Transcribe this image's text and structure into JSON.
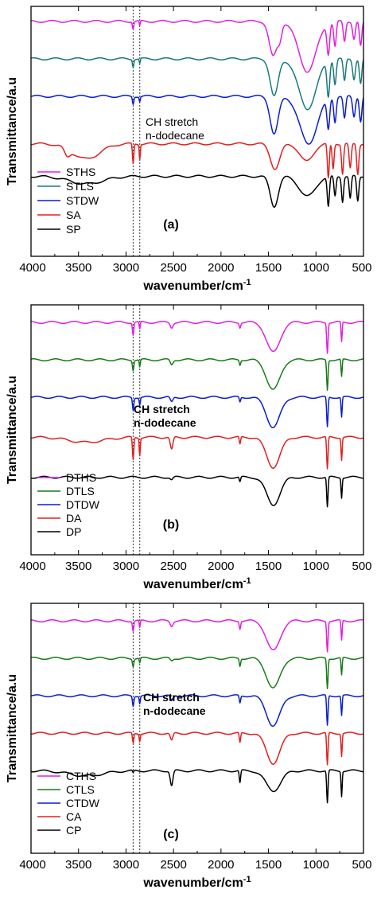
{
  "chart_data": [
    {
      "type": "line",
      "panel_label": "(a)",
      "xlabel": "wavenumber/cm",
      "xlabel_sup": "-1",
      "ylabel": "Transmittance/a.u",
      "xlim": [
        4000,
        500
      ],
      "x_ticks": [
        "4000",
        "3500",
        "3000",
        "2500",
        "2000",
        "1500",
        "1000",
        "500"
      ],
      "annotation": {
        "line1": "CH stretch",
        "line2": "n-dodecane",
        "bold": false
      },
      "dotted_lines_x": [
        2925,
        2855
      ],
      "legend": [
        "STHS",
        "STLS",
        "STDW",
        "SA",
        "SP"
      ],
      "series": [
        {
          "name": "STHS",
          "color": "#e020e0",
          "baseline": 0.94,
          "features": [
            [
              2925,
              0.03,
              10
            ],
            [
              2855,
              0.02,
              8
            ],
            [
              1450,
              0.14,
              60
            ],
            [
              1380,
              0.05,
              30
            ],
            [
              1090,
              0.2,
              130
            ],
            [
              870,
              0.12,
              20
            ],
            [
              800,
              0.1,
              18
            ],
            [
              700,
              0.08,
              18
            ],
            [
              600,
              0.07,
              20
            ],
            [
              530,
              0.1,
              18
            ]
          ]
        },
        {
          "name": "STLS",
          "color": "#1a7a7a",
          "baseline": 0.79,
          "features": [
            [
              2925,
              0.03,
              10
            ],
            [
              2855,
              0.02,
              8
            ],
            [
              1440,
              0.15,
              60
            ],
            [
              1090,
              0.2,
              130
            ],
            [
              870,
              0.14,
              20
            ],
            [
              800,
              0.1,
              18
            ],
            [
              700,
              0.09,
              18
            ],
            [
              600,
              0.08,
              20
            ],
            [
              530,
              0.1,
              18
            ]
          ]
        },
        {
          "name": "STDW",
          "color": "#0a1ed0",
          "baseline": 0.64,
          "features": [
            [
              2925,
              0.03,
              10
            ],
            [
              2855,
              0.02,
              8
            ],
            [
              1440,
              0.15,
              60
            ],
            [
              1080,
              0.19,
              130
            ],
            [
              870,
              0.12,
              20
            ],
            [
              800,
              0.1,
              18
            ],
            [
              700,
              0.09,
              18
            ],
            [
              600,
              0.08,
              20
            ],
            [
              530,
              0.1,
              18
            ]
          ]
        },
        {
          "name": "SA",
          "color": "#e02020",
          "baseline": 0.45,
          "features": [
            [
              3620,
              0.03,
              40
            ],
            [
              3420,
              0.06,
              200
            ],
            [
              2925,
              0.08,
              10
            ],
            [
              2855,
              0.06,
              8
            ],
            [
              1430,
              0.1,
              70
            ],
            [
              1100,
              0.07,
              100
            ],
            [
              870,
              0.14,
              14
            ],
            [
              820,
              0.1,
              14
            ],
            [
              720,
              0.12,
              15
            ],
            [
              640,
              0.1,
              16
            ],
            [
              560,
              0.12,
              16
            ]
          ]
        },
        {
          "name": "SP",
          "color": "#000000",
          "baseline": 0.32,
          "features": [
            [
              3420,
              0.03,
              250
            ],
            [
              1440,
              0.12,
              60
            ],
            [
              1090,
              0.08,
              120
            ],
            [
              870,
              0.12,
              16
            ],
            [
              800,
              0.08,
              15
            ],
            [
              720,
              0.1,
              15
            ],
            [
              640,
              0.09,
              15
            ],
            [
              560,
              0.1,
              16
            ]
          ]
        }
      ]
    },
    {
      "type": "line",
      "panel_label": "(b)",
      "xlabel": "wavenumber/cm",
      "xlabel_sup": "-1",
      "ylabel": "Transmittance/a.u",
      "xlim": [
        4000,
        500
      ],
      "x_ticks": [
        "4000",
        "3500",
        "3000",
        "2500",
        "2000",
        "1500",
        "1000",
        "500"
      ],
      "annotation": {
        "line1": "CH stretch",
        "line2": "n-dodecane",
        "bold": true
      },
      "dotted_lines_x": [
        2925,
        2855
      ],
      "legend": [
        "DTHS",
        "DTLS",
        "DTDW",
        "DA",
        "DP"
      ],
      "series": [
        {
          "name": "DTHS",
          "color": "#e020e0",
          "baseline": 0.93,
          "features": [
            [
              2925,
              0.05,
              10
            ],
            [
              2855,
              0.03,
              8
            ],
            [
              2520,
              0.02,
              20
            ],
            [
              1800,
              0.02,
              10
            ],
            [
              1450,
              0.12,
              100
            ],
            [
              880,
              0.12,
              10
            ],
            [
              730,
              0.08,
              8
            ]
          ]
        },
        {
          "name": "DTLS",
          "color": "#1a7a1a",
          "baseline": 0.78,
          "features": [
            [
              2925,
              0.04,
              10
            ],
            [
              2855,
              0.03,
              8
            ],
            [
              2520,
              0.02,
              20
            ],
            [
              1800,
              0.02,
              10
            ],
            [
              1450,
              0.12,
              100
            ],
            [
              880,
              0.12,
              10
            ],
            [
              730,
              0.07,
              8
            ]
          ]
        },
        {
          "name": "DTDW",
          "color": "#0a1ed0",
          "baseline": 0.63,
          "features": [
            [
              2925,
              0.05,
              10
            ],
            [
              2855,
              0.03,
              8
            ],
            [
              2520,
              0.02,
              20
            ],
            [
              1800,
              0.02,
              10
            ],
            [
              1450,
              0.12,
              100
            ],
            [
              880,
              0.12,
              10
            ],
            [
              730,
              0.08,
              8
            ]
          ]
        },
        {
          "name": "DA",
          "color": "#e02020",
          "baseline": 0.47,
          "features": [
            [
              3420,
              0.02,
              250
            ],
            [
              2925,
              0.09,
              10
            ],
            [
              2855,
              0.07,
              8
            ],
            [
              2520,
              0.05,
              20
            ],
            [
              1800,
              0.03,
              10
            ],
            [
              1450,
              0.12,
              100
            ],
            [
              880,
              0.13,
              10
            ],
            [
              730,
              0.09,
              8
            ]
          ]
        },
        {
          "name": "DP",
          "color": "#000000",
          "baseline": 0.31,
          "features": [
            [
              2520,
              0.01,
              20
            ],
            [
              1800,
              0.02,
              10
            ],
            [
              1450,
              0.11,
              100
            ],
            [
              880,
              0.12,
              10
            ],
            [
              730,
              0.08,
              8
            ]
          ]
        }
      ]
    },
    {
      "type": "line",
      "panel_label": "(c)",
      "xlabel": "wavenumber/cm",
      "xlabel_sup": "-1",
      "ylabel": "Transmittance/a.u",
      "xlim": [
        4000,
        500
      ],
      "x_ticks": [
        "4000",
        "3500",
        "3000",
        "2500",
        "2000",
        "1500",
        "1000",
        "500"
      ],
      "annotation": {
        "line1": "CH stretch",
        "line2": "n-dodecane",
        "bold": true
      },
      "dotted_lines_x": [
        2925,
        2855
      ],
      "legend": [
        "CTHS",
        "CTLS",
        "CTDW",
        "CA",
        "CP"
      ],
      "series": [
        {
          "name": "CTHS",
          "color": "#e020e0",
          "baseline": 0.93,
          "features": [
            [
              2925,
              0.04,
              10
            ],
            [
              2855,
              0.03,
              8
            ],
            [
              2520,
              0.02,
              20
            ],
            [
              1800,
              0.03,
              10
            ],
            [
              1450,
              0.12,
              100
            ],
            [
              880,
              0.12,
              10
            ],
            [
              730,
              0.08,
              8
            ]
          ]
        },
        {
          "name": "CTLS",
          "color": "#1a7a1a",
          "baseline": 0.78,
          "features": [
            [
              2925,
              0.03,
              10
            ],
            [
              2855,
              0.02,
              8
            ],
            [
              2520,
              0.01,
              20
            ],
            [
              1800,
              0.03,
              10
            ],
            [
              1450,
              0.12,
              100
            ],
            [
              880,
              0.12,
              10
            ],
            [
              730,
              0.07,
              8
            ]
          ]
        },
        {
          "name": "CTDW",
          "color": "#0a1ed0",
          "baseline": 0.63,
          "features": [
            [
              2925,
              0.04,
              10
            ],
            [
              2855,
              0.03,
              8
            ],
            [
              2520,
              0.02,
              20
            ],
            [
              1800,
              0.03,
              10
            ],
            [
              1450,
              0.12,
              100
            ],
            [
              880,
              0.12,
              10
            ],
            [
              730,
              0.08,
              8
            ]
          ]
        },
        {
          "name": "CA",
          "color": "#e02020",
          "baseline": 0.48,
          "features": [
            [
              2925,
              0.04,
              10
            ],
            [
              2855,
              0.03,
              8
            ],
            [
              2520,
              0.03,
              20
            ],
            [
              1800,
              0.04,
              10
            ],
            [
              1450,
              0.12,
              100
            ],
            [
              880,
              0.13,
              10
            ],
            [
              730,
              0.09,
              8
            ]
          ]
        },
        {
          "name": "CP",
          "color": "#000000",
          "baseline": 0.33,
          "features": [
            [
              3420,
              0.02,
              250
            ],
            [
              2925,
              0.01,
              10
            ],
            [
              2520,
              0.06,
              20
            ],
            [
              1800,
              0.05,
              10
            ],
            [
              1450,
              0.08,
              110
            ],
            [
              880,
              0.13,
              10
            ],
            [
              730,
              0.1,
              8
            ]
          ]
        }
      ]
    }
  ]
}
